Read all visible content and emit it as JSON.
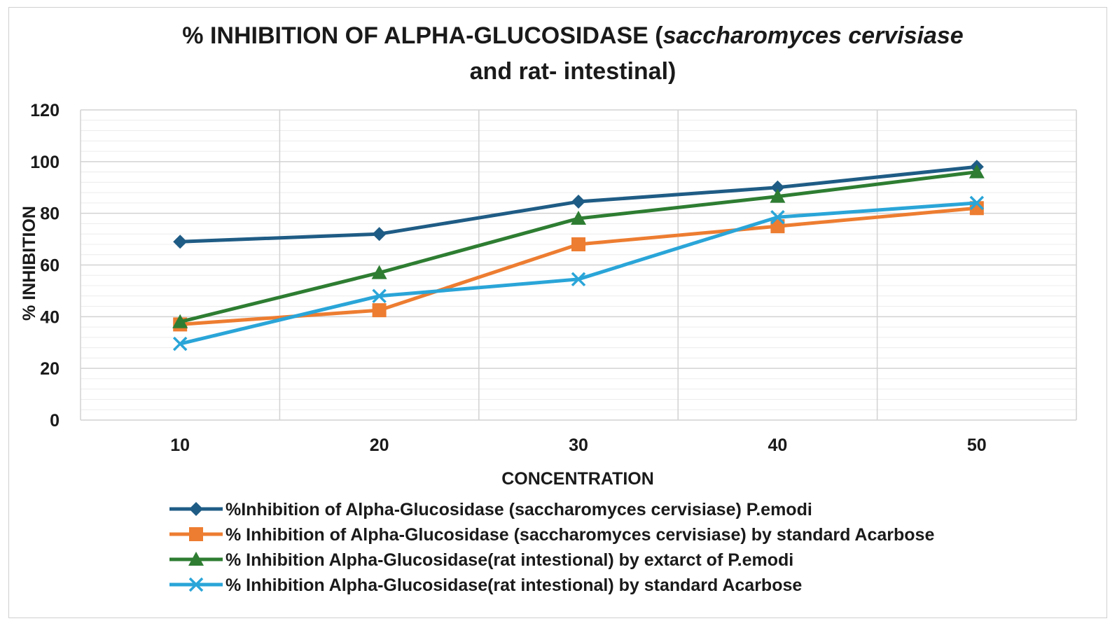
{
  "chart_data": {
    "type": "line",
    "title": {
      "line1_prefix": "% INHIBITION OF ALPHA-GLUCOSIDASE (",
      "line1_italic": "saccharomyces cervisiase",
      "line2": "and rat- intestinal)"
    },
    "xlabel": "CONCENTRATION",
    "ylabel": "% INHIBITION",
    "categories": [
      "10",
      "20",
      "30",
      "40",
      "50"
    ],
    "ylim": [
      0,
      120
    ],
    "yticks": [
      "0",
      "20",
      "40",
      "60",
      "80",
      "100",
      "120"
    ],
    "grid": true,
    "legend_position": "bottom",
    "series": [
      {
        "name": "%Inhibition of Alpha-Glucosidase (saccharomyces cervisiase) P.emodi",
        "values": [
          69,
          72,
          84.5,
          90,
          98
        ],
        "color": "#1f5c85",
        "marker": "diamond"
      },
      {
        "name": "% Inhibition of Alpha-Glucosidase (saccharomyces cervisiase) by standard Acarbose",
        "values": [
          37,
          42.5,
          68,
          75,
          82
        ],
        "color": "#ed7d31",
        "marker": "square"
      },
      {
        "name": "% Inhibition Alpha-Glucosidase(rat intestional) by extarct of P.emodi",
        "values": [
          38,
          57,
          78,
          86.5,
          96
        ],
        "color": "#2e7d32",
        "marker": "triangle"
      },
      {
        "name": "% Inhibition Alpha-Glucosidase(rat intestional) by standard Acarbose",
        "values": [
          29.5,
          48,
          54.5,
          78.5,
          84
        ],
        "color": "#2aa5d8",
        "marker": "x"
      }
    ]
  }
}
